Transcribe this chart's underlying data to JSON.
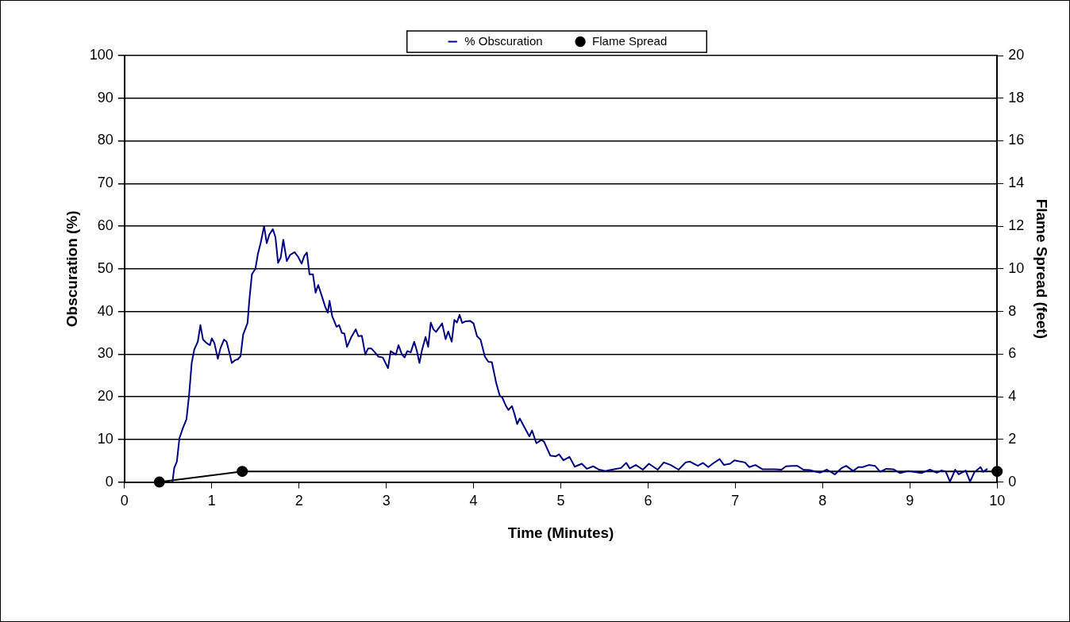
{
  "chart_data": {
    "type": "line",
    "xlabel": "Time (Minutes)",
    "ylabel": "Obscuration (%)",
    "y2label": "Flame Spread (feet)",
    "xlim": [
      0,
      10
    ],
    "xticks": [
      0,
      1,
      2,
      3,
      4,
      5,
      6,
      7,
      8,
      9,
      10
    ],
    "ylim": [
      0,
      100
    ],
    "yticks": [
      0,
      10,
      20,
      30,
      40,
      50,
      60,
      70,
      80,
      90,
      100
    ],
    "y2lim": [
      0,
      20
    ],
    "y2ticks": [
      0,
      2,
      4,
      6,
      8,
      10,
      12,
      14,
      16,
      18,
      20
    ],
    "grid": "y",
    "legend": "top",
    "series": [
      {
        "name": "% Obscuration",
        "color": "#000080",
        "marker": "none",
        "x": [
          0.55,
          0.57,
          0.6,
          0.63,
          0.67,
          0.71,
          0.74,
          0.77,
          0.8,
          0.84,
          0.87,
          0.9,
          0.94,
          0.98,
          1.0,
          1.03,
          1.07,
          1.1,
          1.14,
          1.17,
          1.2,
          1.23,
          1.27,
          1.3,
          1.33,
          1.36,
          1.41,
          1.43,
          1.46,
          1.5,
          1.53,
          1.56,
          1.6,
          1.63,
          1.66,
          1.7,
          1.73,
          1.76,
          1.79,
          1.82,
          1.86,
          1.9,
          1.95,
          1.99,
          2.03,
          2.06,
          2.09,
          2.12,
          2.16,
          2.19,
          2.22,
          2.26,
          2.3,
          2.33,
          2.35,
          2.38,
          2.43,
          2.46,
          2.49,
          2.52,
          2.55,
          2.6,
          2.65,
          2.68,
          2.72,
          2.76,
          2.79,
          2.83,
          2.87,
          2.91,
          2.96,
          3.02,
          3.05,
          3.11,
          3.14,
          3.18,
          3.21,
          3.24,
          3.28,
          3.32,
          3.35,
          3.38,
          3.41,
          3.45,
          3.48,
          3.51,
          3.54,
          3.57,
          3.64,
          3.68,
          3.71,
          3.75,
          3.78,
          3.81,
          3.84,
          3.87,
          3.91,
          3.96,
          4.0,
          4.04,
          4.08,
          4.13,
          4.17,
          4.21,
          4.26,
          4.3,
          4.33,
          4.37,
          4.4,
          4.44,
          4.47,
          4.5,
          4.53,
          4.6,
          4.64,
          4.67,
          4.72,
          4.78,
          4.81,
          4.84,
          4.88,
          4.94,
          4.98,
          5.03,
          5.1,
          5.16,
          5.24,
          5.3,
          5.37,
          5.44,
          5.51,
          5.61,
          5.69,
          5.75,
          5.79,
          5.86,
          5.94,
          6.01,
          6.11,
          6.18,
          6.26,
          6.35,
          6.43,
          6.48,
          6.57,
          6.63,
          6.69,
          6.74,
          6.82,
          6.87,
          6.94,
          6.99,
          7.11,
          7.16,
          7.23,
          7.31,
          7.45,
          7.53,
          7.58,
          7.65,
          7.71,
          7.78,
          7.85,
          7.97,
          8.05,
          8.14,
          8.22,
          8.27,
          8.35,
          8.41,
          8.46,
          8.53,
          8.6,
          8.66,
          8.73,
          8.81,
          8.89,
          8.98,
          9.13,
          9.23,
          9.31,
          9.36,
          9.41,
          9.46,
          9.52,
          9.56,
          9.64,
          9.69,
          9.74,
          9.81,
          9.84,
          9.89
        ],
        "values": [
          0.1,
          3.3,
          4.8,
          10.3,
          12.7,
          14.7,
          20.3,
          27.9,
          31.1,
          32.9,
          36.8,
          33.4,
          32.6,
          32.1,
          33.7,
          32.6,
          28.9,
          31.4,
          33.4,
          32.9,
          30.5,
          27.9,
          28.6,
          28.8,
          29.5,
          34.6,
          37.3,
          42.5,
          48.7,
          50.0,
          53.6,
          56.0,
          60.0,
          56.0,
          58.0,
          59.3,
          57.4,
          51.4,
          52.6,
          56.8,
          51.8,
          53.3,
          53.9,
          52.8,
          51.2,
          53.0,
          53.8,
          48.7,
          48.7,
          44.4,
          46.2,
          43.7,
          41.1,
          39.7,
          42.5,
          38.9,
          36.4,
          36.8,
          35.0,
          34.8,
          31.7,
          34.0,
          35.8,
          34.2,
          34.3,
          29.9,
          31.3,
          31.3,
          30.4,
          29.4,
          29.2,
          26.7,
          30.7,
          29.9,
          32.1,
          29.9,
          29.2,
          30.7,
          30.4,
          32.9,
          30.8,
          27.9,
          31.0,
          34.0,
          31.7,
          37.4,
          35.8,
          35.2,
          37.2,
          33.5,
          35.3,
          32.9,
          38.0,
          37.4,
          39.2,
          37.3,
          37.7,
          37.8,
          37.2,
          34.2,
          33.4,
          29.4,
          28.2,
          28.1,
          23.2,
          20.3,
          19.8,
          17.9,
          16.9,
          17.8,
          15.9,
          13.6,
          14.9,
          12.2,
          10.7,
          12.1,
          9.1,
          9.9,
          9.4,
          8.0,
          6.2,
          6.0,
          6.5,
          5.1,
          5.9,
          3.6,
          4.3,
          3.1,
          3.7,
          2.9,
          2.6,
          3.0,
          3.3,
          4.5,
          3.2,
          4.0,
          2.9,
          4.3,
          2.9,
          4.6,
          4.0,
          2.9,
          4.6,
          4.8,
          3.8,
          4.5,
          3.5,
          4.3,
          5.4,
          4.0,
          4.3,
          5.1,
          4.6,
          3.5,
          4.0,
          3.0,
          3.0,
          2.9,
          3.7,
          3.8,
          3.8,
          2.9,
          2.8,
          2.2,
          2.9,
          1.8,
          3.3,
          3.8,
          2.6,
          3.5,
          3.5,
          4.0,
          3.8,
          2.4,
          3.1,
          3.0,
          2.1,
          2.6,
          2.1,
          2.9,
          2.2,
          2.7,
          2.5,
          0.1,
          2.9,
          1.8,
          2.7,
          0.1,
          2.3,
          3.5,
          2.4,
          3.1
        ]
      },
      {
        "name": "Flame Spread",
        "color": "#000000",
        "marker": "circle",
        "axis": "y2",
        "x": [
          0.4,
          1.35,
          10
        ],
        "values": [
          0,
          0.5,
          0.5
        ]
      }
    ]
  }
}
